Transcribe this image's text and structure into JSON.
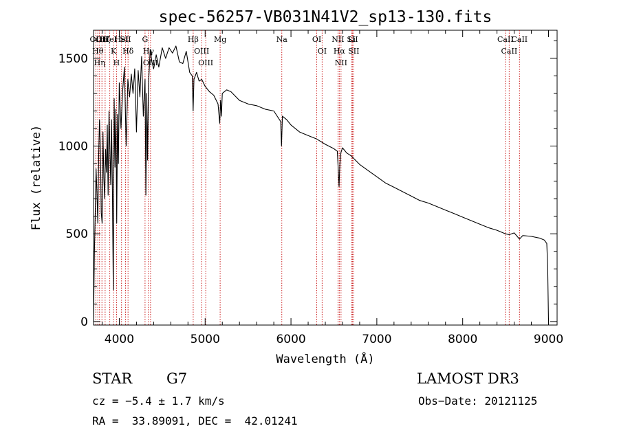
{
  "chart_data": {
    "type": "line",
    "title": "spec-56257-VB031N41V2_sp13-130.fits",
    "xlabel": "Wavelength (Å)",
    "ylabel": "Flux (relative)",
    "xlim": [
      3700,
      9100
    ],
    "ylim": [
      -20,
      1660
    ],
    "x_ticks": [
      {
        "value": 4000,
        "label": "4000"
      },
      {
        "value": 5000,
        "label": "5000"
      },
      {
        "value": 6000,
        "label": "6000"
      },
      {
        "value": 7000,
        "label": "7000"
      },
      {
        "value": 8000,
        "label": "8000"
      },
      {
        "value": 9000,
        "label": "9000"
      }
    ],
    "y_ticks": [
      {
        "value": 0,
        "label": "0"
      },
      {
        "value": 500,
        "label": "500"
      },
      {
        "value": 1000,
        "label": "1000"
      },
      {
        "value": 1500,
        "label": "1500"
      }
    ],
    "grid": false,
    "series": [
      {
        "name": "flux",
        "color": "#000000",
        "x": [
          3700,
          3710,
          3720,
          3730,
          3740,
          3750,
          3760,
          3770,
          3780,
          3790,
          3800,
          3810,
          3820,
          3830,
          3840,
          3850,
          3860,
          3870,
          3880,
          3890,
          3900,
          3910,
          3920,
          3930,
          3940,
          3950,
          3960,
          3970,
          3980,
          3990,
          4000,
          4020,
          4040,
          4060,
          4080,
          4100,
          4120,
          4140,
          4160,
          4180,
          4200,
          4220,
          4240,
          4260,
          4280,
          4300,
          4310,
          4320,
          4330,
          4340,
          4360,
          4380,
          4400,
          4430,
          4460,
          4500,
          4540,
          4580,
          4620,
          4660,
          4700,
          4740,
          4780,
          4820,
          4850,
          4860,
          4870,
          4900,
          4930,
          4960,
          5000,
          5050,
          5100,
          5150,
          5170,
          5180,
          5190,
          5200,
          5250,
          5300,
          5400,
          5500,
          5600,
          5700,
          5800,
          5880,
          5890,
          5900,
          5950,
          6000,
          6100,
          6200,
          6300,
          6400,
          6500,
          6540,
          6560,
          6570,
          6580,
          6600,
          6650,
          6700,
          6750,
          6800,
          6900,
          7000,
          7100,
          7200,
          7300,
          7400,
          7500,
          7600,
          7700,
          7800,
          7900,
          8000,
          8100,
          8200,
          8300,
          8400,
          8498,
          8542,
          8600,
          8662,
          8700,
          8800,
          8900,
          8950,
          8980,
          8990,
          9000,
          9005
        ],
        "values": [
          0,
          380,
          620,
          870,
          730,
          560,
          950,
          1150,
          980,
          620,
          560,
          1080,
          820,
          700,
          980,
          850,
          1120,
          720,
          1200,
          1000,
          780,
          1150,
          720,
          180,
          1270,
          880,
          1210,
          560,
          1180,
          900,
          1360,
          1100,
          1320,
          1450,
          1000,
          1380,
          1280,
          1410,
          1300,
          1440,
          1080,
          1430,
          1280,
          1510,
          1170,
          1380,
          720,
          1300,
          920,
          1350,
          1550,
          1480,
          1440,
          1520,
          1450,
          1560,
          1500,
          1560,
          1530,
          1570,
          1480,
          1470,
          1540,
          1420,
          1400,
          1200,
          1380,
          1420,
          1370,
          1380,
          1340,
          1310,
          1290,
          1240,
          1130,
          1260,
          1170,
          1300,
          1320,
          1310,
          1260,
          1240,
          1230,
          1210,
          1200,
          1140,
          1000,
          1170,
          1150,
          1120,
          1080,
          1060,
          1040,
          1010,
          985,
          970,
          770,
          900,
          960,
          990,
          960,
          945,
          920,
          895,
          860,
          825,
          790,
          765,
          740,
          715,
          690,
          675,
          655,
          635,
          615,
          595,
          575,
          555,
          535,
          520,
          500,
          495,
          505,
          470,
          490,
          485,
          475,
          465,
          445,
          310,
          0,
          0
        ]
      },
      {
        "name": "spectral lines",
        "color": "#cc2222",
        "style": "dotted",
        "x": [
          3727,
          3750,
          3770,
          3798,
          3835,
          3889,
          3933,
          3968,
          4026,
          4072,
          4102,
          4300,
          4340,
          4364,
          4861,
          4959,
          5007,
          5175,
          5893,
          6300,
          6363,
          6548,
          6563,
          6583,
          6708,
          6716,
          6731,
          8498,
          8542,
          8662
        ],
        "labels": [
          "OII",
          "Hθ",
          "Hη",
          "OII",
          "Hζ",
          "HeI",
          "K",
          "H",
          "HeI",
          "SII",
          "Hδ",
          "G",
          "Hγ",
          "OIII",
          "Hβ",
          "OIII",
          "OIII",
          "Mg",
          "Na",
          "OI",
          "OI",
          "NII",
          "Hα",
          "NII",
          "Li",
          "SII",
          "SII",
          "CaII",
          "CaII",
          "CaII"
        ]
      }
    ],
    "info": {
      "class": "STAR",
      "subclass": "G7",
      "survey": "LAMOST DR3",
      "cz": "cz = −5.4 ± 1.7 km/s",
      "obs_date": "Obs−Date: 20121125",
      "radec": "RA =  33.89091, DEC =  42.01241"
    }
  }
}
